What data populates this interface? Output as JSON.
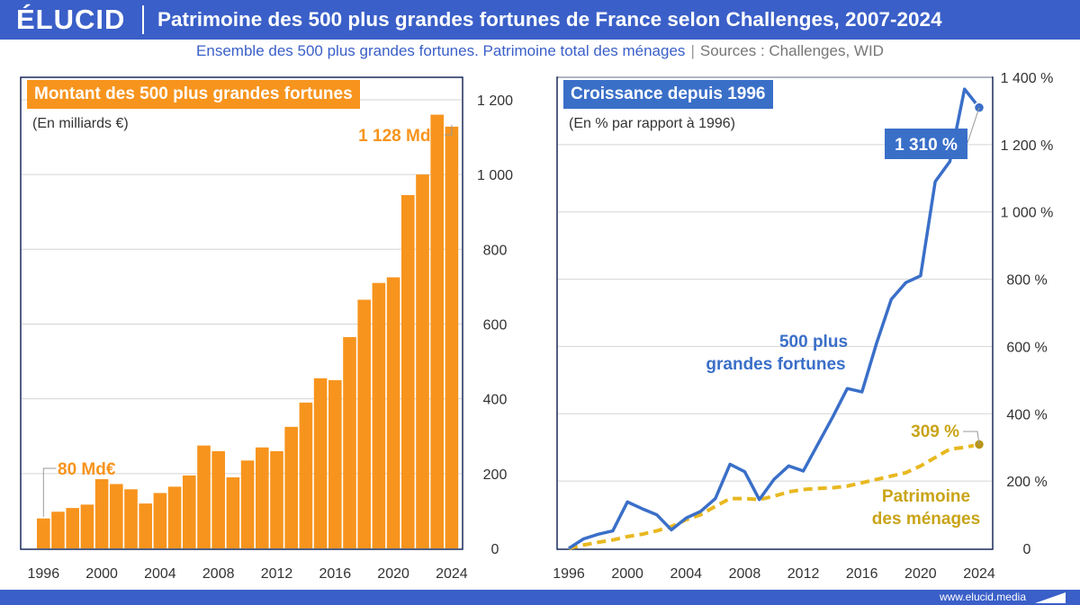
{
  "header": {
    "logo": "ÉLUCID",
    "title": "Patrimoine des 500 plus grandes fortunes de France selon Challenges, 2007-2024",
    "subtitle": "Ensemble des 500 plus grandes fortunes. Patrimoine total des ménages",
    "sources": "Sources : Challenges, WID"
  },
  "footer": {
    "url": "www.elucid.media"
  },
  "colors": {
    "brand": "#3a5fc8",
    "orange": "#f7941d",
    "blue": "#3a6fc8",
    "gold": "#e8b820"
  },
  "chart_data": [
    {
      "type": "bar",
      "title": "Montant des 500 plus grandes fortunes",
      "subtitle": "(En milliards €)",
      "categories": [
        "1996",
        "1997",
        "1998",
        "1999",
        "2000",
        "2001",
        "2002",
        "2003",
        "2004",
        "2005",
        "2006",
        "2007",
        "2008",
        "2009",
        "2010",
        "2011",
        "2012",
        "2013",
        "2014",
        "2015",
        "2016",
        "2017",
        "2018",
        "2019",
        "2020",
        "2021",
        "2022",
        "2023",
        "2024"
      ],
      "x_tick_labels": [
        "1996",
        "2000",
        "2004",
        "2008",
        "2012",
        "2016",
        "2020",
        "2024"
      ],
      "y_tick_labels": [
        "0",
        "200",
        "400",
        "600",
        "800",
        "1 000",
        "1 200"
      ],
      "values": [
        80,
        98,
        108,
        117,
        185,
        172,
        158,
        120,
        148,
        165,
        195,
        275,
        260,
        190,
        235,
        270,
        260,
        325,
        390,
        455,
        450,
        565,
        665,
        710,
        725,
        945,
        1000,
        1160,
        1128
      ],
      "ylim": [
        0,
        1260
      ],
      "annotations": [
        {
          "category": "1996",
          "text": "80 Md€"
        },
        {
          "category": "2024",
          "text": "1 128 Md€"
        }
      ],
      "grid": true
    },
    {
      "type": "line",
      "title": "Croissance depuis 1996",
      "subtitle": "(En % par rapport à 1996)",
      "x_tick_labels": [
        "1996",
        "2000",
        "2004",
        "2008",
        "2012",
        "2016",
        "2020",
        "2024"
      ],
      "y_tick_labels": [
        "0",
        "200 %",
        "400 %",
        "600 %",
        "800 %",
        "1 000 %",
        "1 200 %",
        "1 400 %"
      ],
      "ylim": [
        0,
        1400
      ],
      "series": [
        {
          "name": "500 plus grandes fortunes",
          "label_lines": [
            "500 plus",
            "grandes fortunes"
          ],
          "x": [
            1996,
            1997,
            1998,
            1999,
            2000,
            2001,
            2002,
            2003,
            2004,
            2005,
            2006,
            2007,
            2008,
            2009,
            2010,
            2011,
            2012,
            2013,
            2014,
            2015,
            2016,
            2017,
            2018,
            2019,
            2020,
            2021,
            2022,
            2023,
            2024
          ],
          "values": [
            0,
            28,
            42,
            52,
            138,
            118,
            100,
            55,
            90,
            110,
            148,
            250,
            228,
            145,
            205,
            245,
            230,
            310,
            390,
            475,
            465,
            610,
            740,
            790,
            810,
            1090,
            1150,
            1365,
            1310
          ],
          "end_label": "1 310 %"
        },
        {
          "name": "Patrimoine des ménages",
          "label_lines": [
            "Patrimoine",
            "des ménages"
          ],
          "x": [
            1996,
            1997,
            1998,
            1999,
            2000,
            2001,
            2002,
            2003,
            2004,
            2005,
            2006,
            2007,
            2008,
            2009,
            2010,
            2011,
            2012,
            2013,
            2014,
            2015,
            2016,
            2017,
            2018,
            2019,
            2020,
            2021,
            2022,
            2023,
            2024
          ],
          "values": [
            0,
            10,
            18,
            25,
            35,
            42,
            52,
            65,
            85,
            100,
            125,
            148,
            148,
            145,
            155,
            168,
            175,
            178,
            180,
            185,
            195,
            205,
            215,
            225,
            245,
            270,
            295,
            300,
            309
          ],
          "end_label": "309 %"
        }
      ],
      "grid": true
    }
  ]
}
